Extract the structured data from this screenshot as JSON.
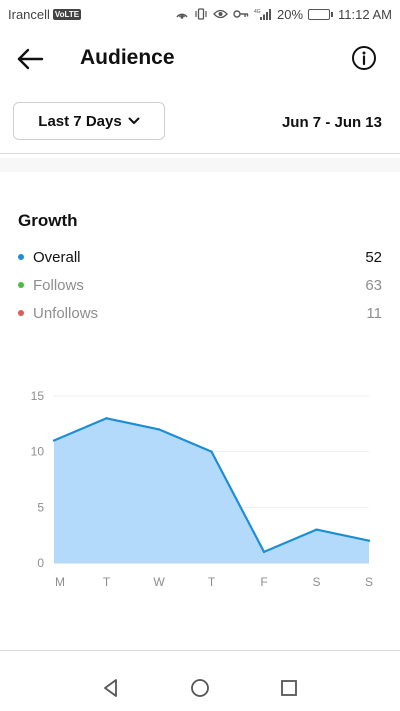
{
  "status_bar": {
    "carrier": "Irancell",
    "volte": "VoLTE",
    "network": "4G",
    "battery": "20%",
    "battery_level": 0.2,
    "time": "11:12 AM"
  },
  "header": {
    "title": "Audience",
    "back_icon": "arrow-left-icon",
    "info_icon": "info-icon"
  },
  "range": {
    "selected": "Last 7 Days",
    "dates": "Jun 7 - Jun 13"
  },
  "growth": {
    "title": "Growth",
    "metrics": [
      {
        "label": "Overall",
        "value": "52",
        "color": "#1c8ed6",
        "label_color": "#111111"
      },
      {
        "label": "Follows",
        "value": "63",
        "color": "#4cbb45",
        "label_color": "#8e8e8e"
      },
      {
        "label": "Unfollows",
        "value": "11",
        "color": "#de5a5a",
        "label_color": "#8e8e8e"
      }
    ]
  },
  "chart_data": {
    "type": "area",
    "categories": [
      "M",
      "T",
      "W",
      "T",
      "F",
      "S",
      "S"
    ],
    "values": [
      11,
      13,
      12,
      10,
      1,
      3,
      2
    ],
    "yticks": [
      "0",
      "5",
      "10",
      "15"
    ],
    "ylim": [
      0,
      15
    ],
    "grid": true,
    "line_color": "#1c8ed6",
    "fill_color": "#b3dafb"
  },
  "nav": {
    "back_icon": "nav-back-icon",
    "home_icon": "nav-home-icon",
    "recents_icon": "nav-recents-icon"
  }
}
